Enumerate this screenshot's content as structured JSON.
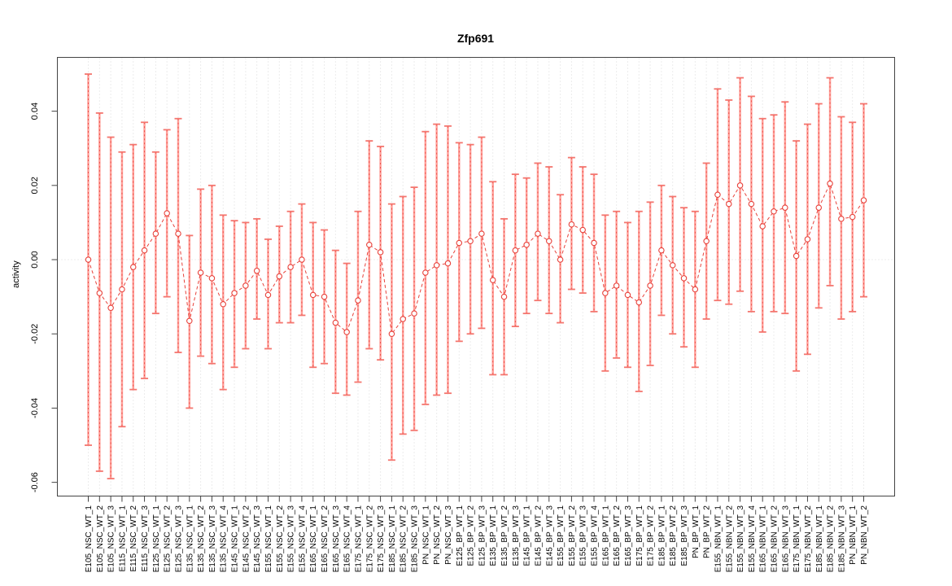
{
  "title": "Zfp691",
  "chart_data": {
    "type": "line",
    "subtype": "points-with-error-bars",
    "title": "Zfp691",
    "xlabel": "",
    "ylabel": "activity",
    "ylim": [
      -0.0637,
      0.0545
    ],
    "yticks": [
      0.04,
      0.02,
      0.0,
      -0.02,
      -0.04,
      -0.06
    ],
    "ytick_labels": [
      "0.04",
      "0.02",
      "0.00",
      "-0.02",
      "-0.04",
      "-0.06"
    ],
    "grid": "vertical-dotted-per-category",
    "zero_line": "dotted-horizontal-at-0",
    "legend": "none",
    "marker": "open-circle",
    "line_style": "dashed",
    "categories": [
      "E105_NSC_WT_1",
      "E105_NSC_WT_2",
      "E105_NSC_WT_3",
      "E115_NSC_WT_1",
      "E115_NSC_WT_2",
      "E115_NSC_WT_3",
      "E125_NSC_WT_1",
      "E125_NSC_WT_2",
      "E125_NSC_WT_3",
      "E135_NSC_WT_1",
      "E135_NSC_WT_2",
      "E135_NSC_WT_3",
      "E135_NSC_WT_4",
      "E145_NSC_WT_1",
      "E145_NSC_WT_2",
      "E145_NSC_WT_3",
      "E155_NSC_WT_1",
      "E155_NSC_WT_2",
      "E155_NSC_WT_3",
      "E155_NSC_WT_4",
      "E165_NSC_WT_1",
      "E165_NSC_WT_2",
      "E165_NSC_WT_3",
      "E165_NSC_WT_4",
      "E175_NSC_WT_1",
      "E175_NSC_WT_2",
      "E175_NSC_WT_3",
      "E185_NSC_WT_1",
      "E185_NSC_WT_2",
      "E185_NSC_WT_3",
      "PN_NSC_WT_1",
      "PN_NSC_WT_2",
      "PN_NSC_WT_3",
      "E125_BP_WT_1",
      "E125_BP_WT_2",
      "E125_BP_WT_3",
      "E135_BP_WT_1",
      "E135_BP_WT_2",
      "E135_BP_WT_3",
      "E145_BP_WT_1",
      "E145_BP_WT_2",
      "E145_BP_WT_3",
      "E155_BP_WT_1",
      "E155_BP_WT_2",
      "E155_BP_WT_3",
      "E155_BP_WT_4",
      "E165_BP_WT_1",
      "E165_BP_WT_2",
      "E165_BP_WT_3",
      "E175_BP_WT_1",
      "E175_BP_WT_2",
      "E185_BP_WT_1",
      "E185_BP_WT_2",
      "E185_BP_WT_3",
      "PN_BP_WT_1",
      "PN_BP_WT_2",
      "E155_NBN_WT_1",
      "E155_NBN_WT_2",
      "E155_NBN_WT_3",
      "E155_NBN_WT_4",
      "E165_NBN_WT_1",
      "E165_NBN_WT_2",
      "E165_NBN_WT_3",
      "E175_NBN_WT_1",
      "E175_NBN_WT_2",
      "E185_NBN_WT_1",
      "E185_NBN_WT_2",
      "E185_NBN_WT_3",
      "PN_NBN_WT_1",
      "PN_NBN_WT_2"
    ],
    "series": [
      {
        "name": "activity",
        "values": [
          0.0,
          -0.009,
          -0.013,
          -0.008,
          -0.002,
          0.0025,
          0.007,
          0.0125,
          0.007,
          -0.0165,
          -0.0035,
          -0.005,
          -0.012,
          -0.009,
          -0.007,
          -0.003,
          -0.0095,
          -0.0045,
          -0.002,
          0.0,
          -0.0095,
          -0.01,
          -0.017,
          -0.0195,
          -0.011,
          0.004,
          0.002,
          -0.02,
          -0.016,
          -0.0145,
          -0.0035,
          -0.0015,
          -0.001,
          0.0045,
          0.005,
          0.007,
          -0.0055,
          -0.01,
          0.0025,
          0.004,
          0.007,
          0.005,
          0.0,
          0.0095,
          0.008,
          0.0045,
          -0.009,
          -0.007,
          -0.0095,
          -0.0115,
          -0.007,
          0.0025,
          -0.0015,
          -0.005,
          -0.008,
          0.005,
          0.0175,
          0.015,
          0.02,
          0.015,
          0.009,
          0.013,
          0.014,
          0.001,
          0.0055,
          0.014,
          0.0205,
          0.011,
          0.0115,
          0.016
        ],
        "lower": [
          -0.05,
          -0.057,
          -0.059,
          -0.045,
          -0.035,
          -0.032,
          -0.0145,
          -0.01,
          -0.025,
          -0.04,
          -0.026,
          -0.028,
          -0.035,
          -0.029,
          -0.024,
          -0.016,
          -0.024,
          -0.017,
          -0.017,
          -0.015,
          -0.029,
          -0.028,
          -0.036,
          -0.0365,
          -0.033,
          -0.024,
          -0.027,
          -0.054,
          -0.047,
          -0.046,
          -0.039,
          -0.0365,
          -0.036,
          -0.022,
          -0.02,
          -0.0185,
          -0.031,
          -0.031,
          -0.018,
          -0.0145,
          -0.011,
          -0.0145,
          -0.017,
          -0.008,
          -0.009,
          -0.014,
          -0.03,
          -0.0265,
          -0.029,
          -0.0355,
          -0.0285,
          -0.015,
          -0.02,
          -0.0235,
          -0.029,
          -0.016,
          -0.011,
          -0.012,
          -0.0085,
          -0.014,
          -0.0195,
          -0.014,
          -0.0145,
          -0.03,
          -0.0255,
          -0.013,
          -0.007,
          -0.016,
          -0.014,
          -0.01
        ],
        "upper": [
          0.05,
          0.0395,
          0.033,
          0.029,
          0.031,
          0.037,
          0.029,
          0.035,
          0.038,
          0.0065,
          0.019,
          0.02,
          0.012,
          0.0105,
          0.01,
          0.011,
          0.0055,
          0.009,
          0.013,
          0.015,
          0.01,
          0.008,
          0.0025,
          -0.001,
          0.013,
          0.032,
          0.0305,
          0.015,
          0.017,
          0.0195,
          0.0345,
          0.0365,
          0.036,
          0.0315,
          0.031,
          0.033,
          0.021,
          0.011,
          0.023,
          0.022,
          0.026,
          0.025,
          0.0175,
          0.0275,
          0.025,
          0.023,
          0.012,
          0.013,
          0.01,
          0.013,
          0.0155,
          0.02,
          0.017,
          0.014,
          0.013,
          0.026,
          0.046,
          0.043,
          0.049,
          0.044,
          0.038,
          0.039,
          0.0425,
          0.032,
          0.0365,
          0.042,
          0.049,
          0.0385,
          0.037,
          0.042
        ]
      }
    ],
    "colors": {
      "error_bar": "#ffa09a",
      "error_bar_cap": "#f4766f",
      "error_bar_dash": "#e8423b",
      "line": "#e8423b",
      "marker": "#e8423b",
      "marker_fill": "#ffffff",
      "grid": "#d9d9d9",
      "axis": "#444444",
      "text": "#000000",
      "background": "#ffffff"
    }
  }
}
